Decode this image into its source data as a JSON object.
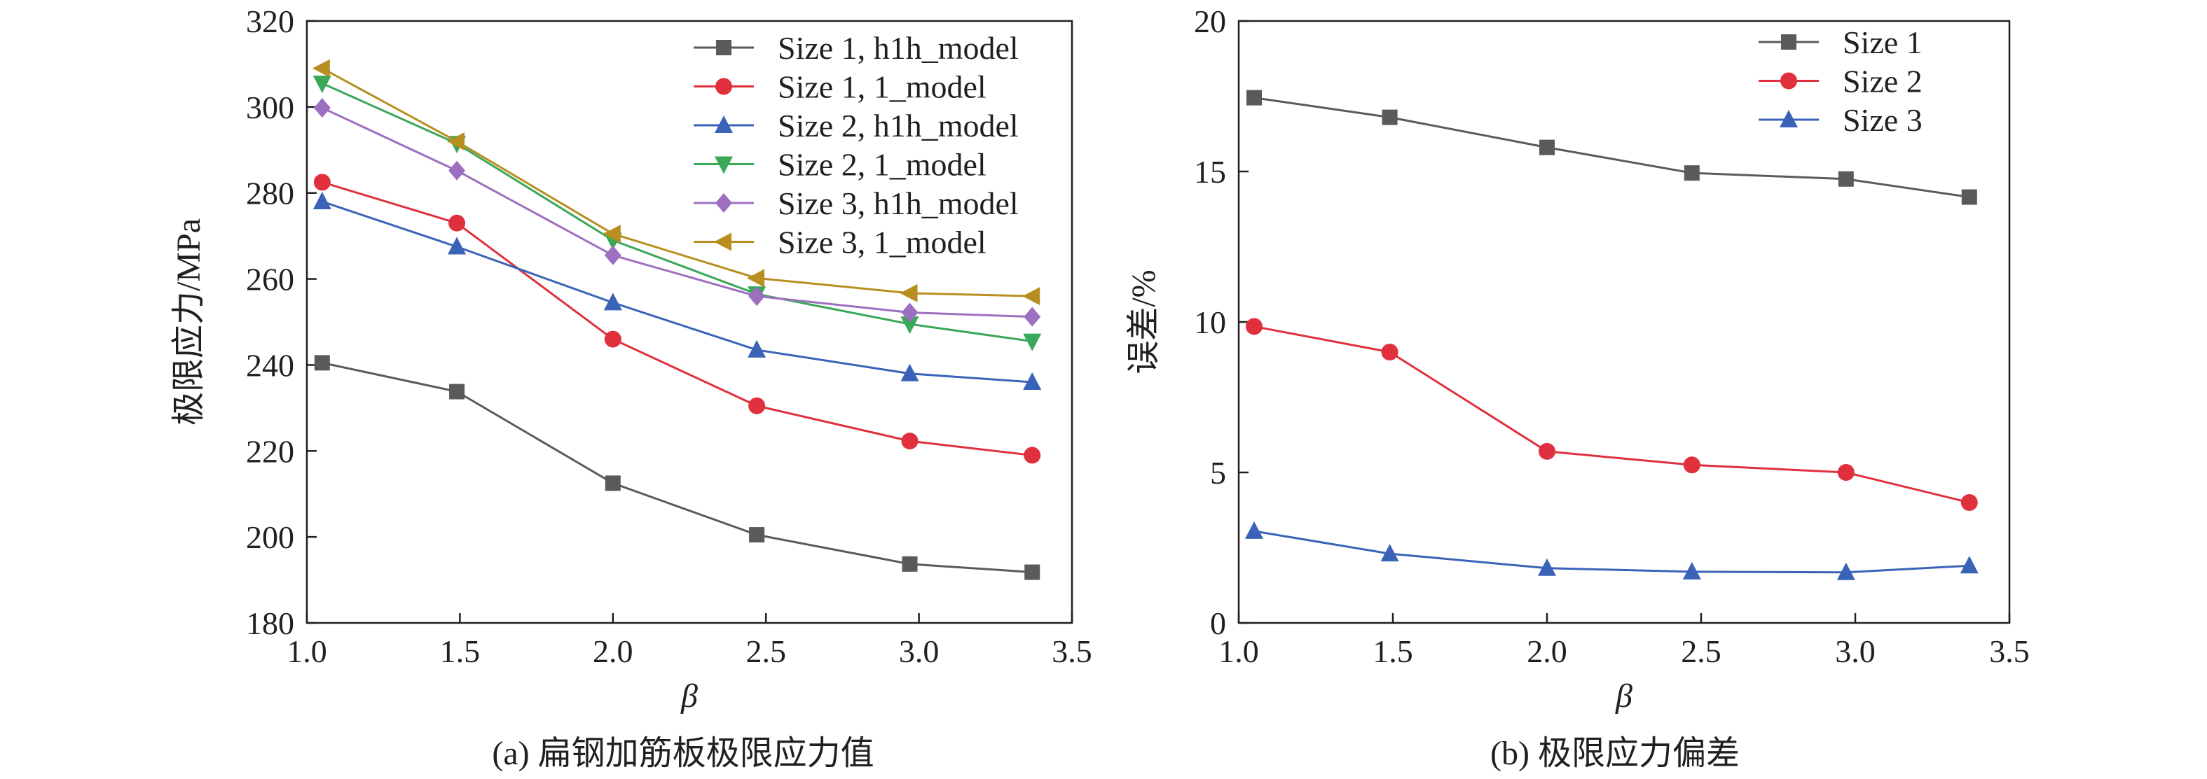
{
  "figure": {
    "caption_a": "(a) 扁钢加筋板极限应力值",
    "caption_b": "(b) 极限应力偏差"
  },
  "chart_data": [
    {
      "type": "line",
      "xlabel": "β",
      "ylabel": "极限应力/MPa",
      "xlim": [
        1.0,
        3.5
      ],
      "ylim": [
        180,
        320
      ],
      "xticks": [
        "1.0",
        "1.5",
        "2.0",
        "2.5",
        "3.0",
        "3.5"
      ],
      "yticks": [
        "180",
        "200",
        "220",
        "240",
        "260",
        "280",
        "300",
        "320"
      ],
      "grid": false,
      "legend_position": "top-right",
      "series": [
        {
          "name": "Size 1, h1h_model",
          "color": "#5a5a5a",
          "marker": "square",
          "x": [
            1.05,
            1.49,
            2.0,
            2.47,
            2.97,
            3.37
          ],
          "y": [
            240.5,
            233.8,
            212.5,
            200.5,
            193.7,
            191.8
          ]
        },
        {
          "name": "Size 1, 1_model",
          "color": "#e0303d",
          "marker": "circle",
          "x": [
            1.05,
            1.49,
            2.0,
            2.47,
            2.97,
            3.37
          ],
          "y": [
            282.5,
            273.0,
            246.0,
            230.5,
            222.3,
            219.0
          ]
        },
        {
          "name": "Size 2, h1h_model",
          "color": "#3a63b8",
          "marker": "triangle-up",
          "x": [
            1.05,
            1.49,
            2.0,
            2.47,
            2.97,
            3.37
          ],
          "y": [
            278.0,
            267.5,
            254.5,
            243.5,
            238.0,
            236.0
          ]
        },
        {
          "name": "Size 2, 1_model",
          "color": "#3aa858",
          "marker": "triangle-down",
          "x": [
            1.05,
            1.49,
            2.0,
            2.47,
            2.97,
            3.37
          ],
          "y": [
            305.5,
            291.5,
            269.0,
            256.5,
            249.5,
            245.5
          ]
        },
        {
          "name": "Size 3, h1h_model",
          "color": "#9d6fc1",
          "marker": "diamond",
          "x": [
            1.05,
            1.49,
            2.0,
            2.47,
            2.97,
            3.37
          ],
          "y": [
            299.8,
            285.2,
            265.5,
            256.0,
            252.2,
            251.2
          ]
        },
        {
          "name": "Size 3, 1_model",
          "color": "#b88e20",
          "marker": "triangle-left",
          "x": [
            1.05,
            1.49,
            2.0,
            2.47,
            2.97,
            3.37
          ],
          "y": [
            309.0,
            292.0,
            270.5,
            260.2,
            256.7,
            256.0
          ]
        }
      ]
    },
    {
      "type": "line",
      "xlabel": "β",
      "ylabel": "误差/%",
      "xlim": [
        1.0,
        3.5
      ],
      "ylim": [
        0,
        20
      ],
      "xticks": [
        "1.0",
        "1.5",
        "2.0",
        "2.5",
        "3.0",
        "3.5"
      ],
      "yticks": [
        "0",
        "5",
        "10",
        "15",
        "20"
      ],
      "grid": false,
      "legend_position": "top-right",
      "series": [
        {
          "name": "Size 1",
          "color": "#5a5a5a",
          "marker": "square",
          "x": [
            1.05,
            1.49,
            2.0,
            2.47,
            2.97,
            3.37
          ],
          "y": [
            17.45,
            16.8,
            15.8,
            14.95,
            14.75,
            14.15
          ]
        },
        {
          "name": "Size 2",
          "color": "#e0303d",
          "marker": "circle",
          "x": [
            1.05,
            1.49,
            2.0,
            2.47,
            2.97,
            3.37
          ],
          "y": [
            9.85,
            9.0,
            5.7,
            5.25,
            5.0,
            4.0
          ]
        },
        {
          "name": "Size 3",
          "color": "#3a63b8",
          "marker": "triangle-up",
          "x": [
            1.05,
            1.49,
            2.0,
            2.47,
            2.97,
            3.37
          ],
          "y": [
            3.05,
            2.3,
            1.82,
            1.7,
            1.68,
            1.9
          ]
        }
      ]
    }
  ]
}
